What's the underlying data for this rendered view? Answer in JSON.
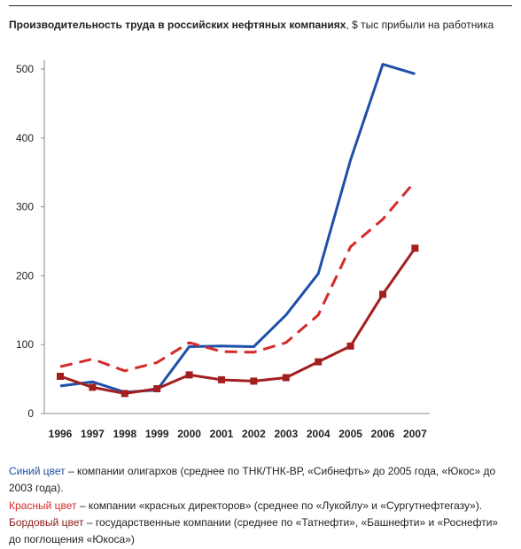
{
  "header": {
    "title_bold": "Производительность труда в российских нефтяных компаниях",
    "title_rest": ", $ тыс прибыли на работника"
  },
  "chart_data": {
    "type": "line",
    "title": "Производительность труда в российских нефтяных компаниях, $ тыс прибыли на работника",
    "categories": [
      "1996",
      "1997",
      "1998",
      "1999",
      "2000",
      "2001",
      "2002",
      "2003",
      "2004",
      "2005",
      "2006",
      "2007"
    ],
    "ylim": [
      0,
      500
    ],
    "yticks": [
      0,
      100,
      200,
      300,
      400,
      500
    ],
    "grid": false,
    "series": [
      {
        "name": "Синий цвет",
        "color": "#1f4fa8",
        "style": "solid",
        "values": [
          40,
          46,
          31,
          34,
          97,
          98,
          97,
          143,
          203,
          368,
          507,
          493
        ]
      },
      {
        "name": "Красный цвет",
        "color": "#d42b2b",
        "style": "dashed",
        "values": [
          68,
          79,
          62,
          74,
          103,
          90,
          89,
          103,
          143,
          242,
          282,
          337
        ]
      },
      {
        "name": "Бордовый цвет",
        "color": "#a31f1f",
        "style": "solid-markers",
        "values": [
          54,
          38,
          29,
          36,
          56,
          49,
          47,
          52,
          75,
          98,
          173,
          240
        ]
      }
    ]
  },
  "legend": [
    {
      "name": "Синий цвет",
      "text": " – компании олигархов (среднее по ТНК/ТНК-ВР, «Сибнефть» до 2005 года, «Юкос» до 2003 года)."
    },
    {
      "name": "Красный цвет",
      "text": " – компании «красных директоров» (среднее по «Лукойлу» и «Сургутнефтегазу»)."
    },
    {
      "name": "Бордовый цвет",
      "text": " – государственные компании (среднее по «Татнефти», «Башнефти» и «Роснефти» до поглощения «Юкоса»)"
    }
  ]
}
